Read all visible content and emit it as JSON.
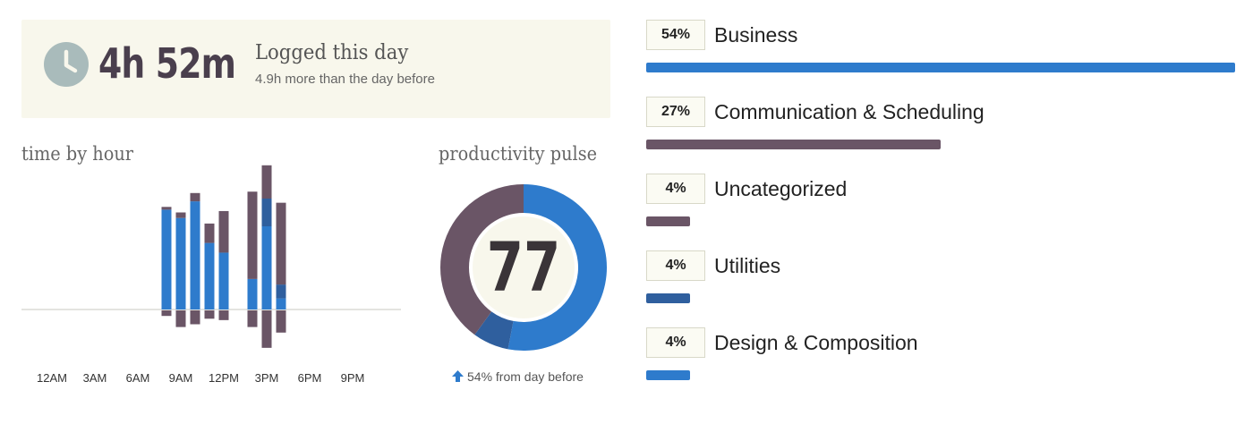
{
  "summary": {
    "time": "4h 52m",
    "label": "Logged this day",
    "sub": "4.9h more than the day before"
  },
  "colors": {
    "productive": "#2e7bcc",
    "very_productive": "#2f5f9e",
    "distracting": "#6a5566",
    "neutral_bg": "#f8f7ec",
    "clock": "#a9bbbb"
  },
  "icons": {
    "clock": "clock-icon",
    "arrow": "arrow-up-icon"
  },
  "hour_section": {
    "title": "time by hour"
  },
  "pulse_section": {
    "title": "productivity pulse",
    "value": "77",
    "change_text": "54% from day before"
  },
  "chart_data": [
    {
      "type": "bar",
      "title": "time by hour",
      "x_tick_labels": [
        "12AM",
        "3AM",
        "6AM",
        "9AM",
        "12PM",
        "3PM",
        "6PM",
        "9PM"
      ],
      "bar_hours": [
        8,
        9,
        10,
        11,
        12,
        14,
        15,
        16
      ],
      "series": [
        {
          "name": "",
          "color": "#2e7bcc",
          "values": [
            0.72,
            0.66,
            0.78,
            0.48,
            0.41,
            0.22,
            0.6,
            0.08
          ]
        },
        {
          "name": "",
          "color": "#2f5f9e",
          "values": [
            0.0,
            0.0,
            0.0,
            0.0,
            0.0,
            0.0,
            0.2,
            0.1
          ]
        },
        {
          "name": "",
          "color": "#6a5566",
          "values": [
            0.02,
            0.04,
            0.06,
            0.14,
            0.3,
            0.63,
            0.24,
            0.59
          ]
        },
        {
          "name": "",
          "color": "#6a5566",
          "direction": "below",
          "values": [
            0.04,
            0.12,
            0.1,
            0.06,
            0.07,
            0.12,
            0.27,
            0.16
          ]
        }
      ]
    },
    {
      "type": "pie",
      "title": "productivity pulse",
      "center_value": 77,
      "slices": [
        {
          "value": 53,
          "color": "#2e7bcc"
        },
        {
          "value": 7,
          "color": "#2f5f9e"
        },
        {
          "value": 40,
          "color": "#6a5566"
        }
      ]
    },
    {
      "type": "bar",
      "orientation": "horizontal",
      "categories": [
        "Business",
        "Communication & Scheduling",
        "Uncategorized",
        "Utilities",
        "Design & Composition"
      ],
      "values": [
        54,
        27,
        4,
        4,
        4
      ],
      "labels": [
        "54%",
        "27%",
        "4%",
        "4%",
        "4%"
      ],
      "colors": [
        "#2e7bcc",
        "#6a5566",
        "#6a5566",
        "#2f5f9e",
        "#2e7bcc"
      ]
    }
  ]
}
